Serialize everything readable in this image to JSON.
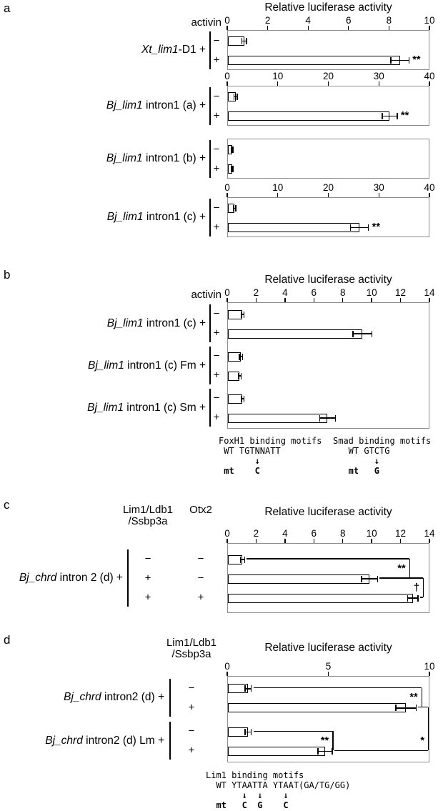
{
  "panels": {
    "a": {
      "letter": "a",
      "axis_title": "Relative luciferase activity",
      "col_header": "activin"
    },
    "b": {
      "letter": "b",
      "axis_title": "Relative luciferase activity",
      "col_header": "activin",
      "motifs": [
        {
          "lines": [
            "FoxH1 binding motifs",
            " WT TGTNNATT",
            "       ↓",
            " mt    C"
          ]
        },
        {
          "lines": [
            "Smad binding motifs",
            "   WT GTCTG",
            "        ↓",
            "   mt   G"
          ]
        }
      ]
    },
    "c": {
      "letter": "c",
      "axis_title": "Relative luciferase activity",
      "col_header_line1": "Lim1/Ldb1",
      "col_header_line2": "/Ssbp3a",
      "col_header2": "Otx2"
    },
    "d": {
      "letter": "d",
      "axis_title": "Relative luciferase activity",
      "col_header_line1": "Lim1/Ldb1",
      "col_header_line2": "/Ssbp3a",
      "motifs": [
        {
          "lines": [
            "Lim1 binding motifs",
            "  WT YTAATTA YTAAT(GA/TG/GG)",
            "       ↓  ↓    ↓",
            "  mt   C  G    C"
          ]
        }
      ]
    }
  },
  "chart_data": [
    {
      "type": "bar",
      "orientation": "horizontal",
      "panel": "a",
      "xlabel": "Relative luciferase activity",
      "xlim": [
        0,
        10
      ],
      "ticks": [
        0,
        2,
        4,
        6,
        8,
        10
      ],
      "condition_header": "activin",
      "groups": [
        {
          "label_italic": "Xt_lim1",
          "label_rest": "-D1 +",
          "rows": [
            {
              "conds": [
                "−"
              ],
              "value": 0.8,
              "err": 0.12,
              "sig": ""
            },
            {
              "conds": [
                "+"
              ],
              "value": 8.5,
              "err": 0.45,
              "sig": "**"
            }
          ]
        }
      ]
    },
    {
      "type": "bar",
      "orientation": "horizontal",
      "panel": "a",
      "xlabel": "Relative luciferase activity",
      "xlim": [
        0,
        40
      ],
      "ticks": [
        0,
        10,
        20,
        30,
        40
      ],
      "condition_header": "activin",
      "groups": [
        {
          "label_italic": "Bj_lim1",
          "label_rest": " intron1 (a) +",
          "rows": [
            {
              "conds": [
                "−"
              ],
              "value": 1.5,
              "err": 0.3,
              "sig": ""
            },
            {
              "conds": [
                "+"
              ],
              "value": 32,
              "err": 1.5,
              "sig": "**"
            }
          ]
        }
      ]
    },
    {
      "type": "bar",
      "orientation": "horizontal",
      "panel": "a",
      "xlabel": "Relative luciferase activity",
      "xlim": [
        0,
        40
      ],
      "ticks": [],
      "condition_header": "activin",
      "groups": [
        {
          "label_italic": "Bj_lim1",
          "label_rest": " intron1 (b) +",
          "rows": [
            {
              "conds": [
                "−"
              ],
              "value": 0.8,
              "err": 0.15,
              "sig": ""
            },
            {
              "conds": [
                "+"
              ],
              "value": 0.8,
              "err": 0.15,
              "sig": ""
            }
          ]
        }
      ]
    },
    {
      "type": "bar",
      "orientation": "horizontal",
      "panel": "a",
      "xlabel": "Relative luciferase activity",
      "xlim": [
        0,
        40
      ],
      "ticks": [
        0,
        10,
        20,
        30,
        40
      ],
      "condition_header": "activin",
      "groups": [
        {
          "label_italic": "Bj_lim1",
          "label_rest": " intron1 (c) +",
          "rows": [
            {
              "conds": [
                "−"
              ],
              "value": 1.3,
              "err": 0.25,
              "sig": ""
            },
            {
              "conds": [
                "+"
              ],
              "value": 26,
              "err": 1.8,
              "sig": "**"
            }
          ]
        }
      ]
    },
    {
      "type": "bar",
      "orientation": "horizontal",
      "panel": "b",
      "xlabel": "Relative luciferase activity",
      "xlim": [
        0,
        14
      ],
      "ticks": [
        0,
        2,
        4,
        6,
        8,
        10,
        12,
        14
      ],
      "condition_header": "activin",
      "groups": [
        {
          "label_italic": "Bj_lim1",
          "label_rest": " intron1 (c) +",
          "rows": [
            {
              "conds": [
                "−"
              ],
              "value": 1.0,
              "err": 0.1,
              "sig": ""
            },
            {
              "conds": [
                "+"
              ],
              "value": 9.3,
              "err": 0.65,
              "sig": ""
            }
          ]
        },
        {
          "label_italic": "Bj_lim1",
          "label_rest": " intron1 (c) Fm +",
          "rows": [
            {
              "conds": [
                "−"
              ],
              "value": 0.9,
              "err": 0.12,
              "sig": ""
            },
            {
              "conds": [
                "+"
              ],
              "value": 0.8,
              "err": 0.1,
              "sig": ""
            }
          ]
        },
        {
          "label_italic": "Bj_lim1",
          "label_rest": " intron1 (c) Sm +",
          "rows": [
            {
              "conds": [
                "−"
              ],
              "value": 1.0,
              "err": 0.1,
              "sig": ""
            },
            {
              "conds": [
                "+"
              ],
              "value": 6.9,
              "err": 0.55,
              "sig": ""
            }
          ]
        }
      ]
    },
    {
      "type": "bar",
      "orientation": "horizontal",
      "panel": "c",
      "xlabel": "Relative luciferase activity",
      "xlim": [
        0,
        14
      ],
      "ticks": [
        0,
        2,
        4,
        6,
        8,
        10,
        12,
        14
      ],
      "condition_headers": [
        "Lim1/Ldb1 /Ssbp3a",
        "Otx2"
      ],
      "groups": [
        {
          "label_italic": "Bj_chrd",
          "label_rest": " intron 2 (d) +",
          "rows": [
            {
              "conds": [
                "−",
                "−"
              ],
              "value": 1.0,
              "err": 0.15,
              "sig": ""
            },
            {
              "conds": [
                "+",
                "−"
              ],
              "value": 9.8,
              "err": 0.55,
              "sig": ""
            },
            {
              "conds": [
                "+",
                "+"
              ],
              "value": 12.8,
              "err": 0.35,
              "sig": ""
            }
          ]
        }
      ],
      "brackets": [
        {
          "from": 0,
          "to": 1,
          "at_value": 12.6,
          "label": "**"
        },
        {
          "from": 1,
          "to": 2,
          "at_value": 13.55,
          "label": "†"
        }
      ]
    },
    {
      "type": "bar",
      "orientation": "horizontal",
      "panel": "d",
      "xlabel": "Relative luciferase activity",
      "xlim": [
        0,
        10
      ],
      "ticks": [
        0,
        5,
        10
      ],
      "condition_headers": [
        "Lim1/Ldb1 /Ssbp3a"
      ],
      "groups": [
        {
          "label_italic": "Bj_chrd",
          "label_rest": " intron2 (d) +",
          "rows": [
            {
              "conds": [
                "−"
              ],
              "value": 1.0,
              "err": 0.15,
              "sig": ""
            },
            {
              "conds": [
                "+"
              ],
              "value": 8.8,
              "err": 0.5,
              "sig": ""
            }
          ]
        },
        {
          "label_italic": "Bj_chrd",
          "label_rest": " intron2 (d) Lm +",
          "rows": [
            {
              "conds": [
                "−"
              ],
              "value": 1.0,
              "err": 0.15,
              "sig": ""
            },
            {
              "conds": [
                "+"
              ],
              "value": 4.8,
              "err": 0.35,
              "sig": ""
            }
          ]
        }
      ],
      "brackets": [
        {
          "from": 0,
          "to": 1,
          "at_value": 9.6,
          "label": "**"
        },
        {
          "from": 2,
          "to": 3,
          "at_value": 5.2,
          "label": "**"
        },
        {
          "from": 1,
          "to": 3,
          "at_value": 9.93,
          "label": "*",
          "label_frac": 0.78
        }
      ]
    }
  ]
}
